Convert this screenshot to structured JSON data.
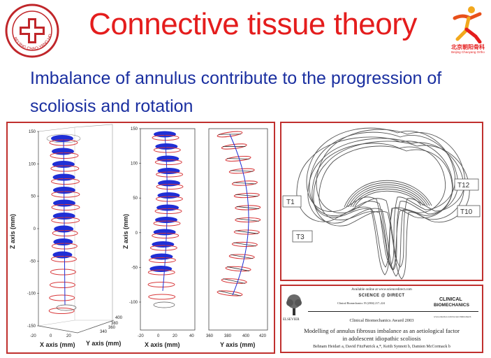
{
  "header": {
    "title": "Connective tissue theory",
    "hospital_logo": {
      "name": "Beijing Chao-Yang Hospital seal",
      "ring_text": "BEIJING CHAO-YANG HOSPITAL"
    },
    "dept_logo": {
      "label": "北京朝阳骨科",
      "sublabel": "Beijing Chaoyang Ortho"
    }
  },
  "subtitle": {
    "line1": "Imbalance of annulus contribute to the progression of",
    "line2": "scoliosis and rotation"
  },
  "figure_3d": {
    "plot_3d": {
      "z_axis_label": "Z axis (mm)",
      "x_axis_label": "X axis (mm)",
      "y_axis_label": "Y axis (mm)",
      "z_ticks": [
        "150",
        "100",
        "50",
        "0",
        "-50",
        "-100",
        "-150"
      ],
      "x_ticks": [
        "-20",
        "0",
        "20"
      ],
      "y_ticks": [
        "340",
        "360",
        "380",
        "400"
      ]
    },
    "plot_xz": {
      "z_axis_label": "Z axis (mm)",
      "x_axis_label": "X axis (mm)",
      "z_ticks": [
        "150",
        "100",
        "50",
        "0",
        "-50",
        "-100"
      ],
      "x_ticks": [
        "-20",
        "0",
        "20",
        "40"
      ]
    },
    "plot_yz": {
      "x_axis_label": "Y axis (mm)",
      "x_ticks": [
        "360",
        "380",
        "400",
        "420"
      ]
    }
  },
  "figure_contours": {
    "labels": [
      "T1",
      "T3",
      "T12",
      "T10"
    ]
  },
  "paper": {
    "online_notice": "Available online at www.sciencedirect.com",
    "sciencedirect": "SCIENCE @ DIRECT",
    "journal_ref": "Clinical Biomechanics 19 (2004) 217–224",
    "journal_name_line1": "CLINICAL",
    "journal_name_line2": "BIOMECHANICS",
    "journal_url": "www.elsevier.com/locate/clinbiomech",
    "publisher": "ELSEVIER",
    "award": "Clinical Biomechanics Award 2003",
    "title_line1": "Modelling of annulus fibrosus imbalance as an aetiological factor",
    "title_line2": "in adolescent idiopathic scoliosis",
    "authors": "Behnam Heidari a, David FitzPatrick a,*, Keith Synnott b, Damien McCormack b"
  },
  "colors": {
    "title": "#e41d1d",
    "subtitle": "#1a2fa0",
    "frame": "#c0302e",
    "disc_blue": "#1f2fd6",
    "disc_red": "#d8383a"
  }
}
